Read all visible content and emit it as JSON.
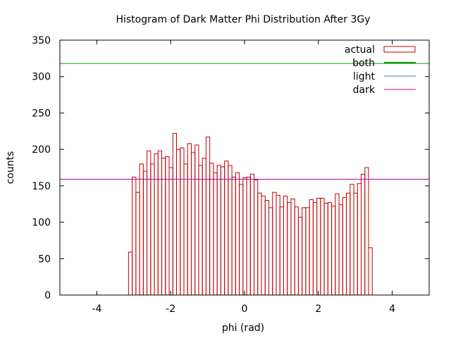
{
  "chart_data": {
    "type": "bar",
    "title": "Histogram of Dark Matter Phi Distribution After 3Gy",
    "xlabel": "phi (rad)",
    "ylabel": "counts",
    "xlim": [
      -5,
      5
    ],
    "ylim": [
      0,
      350
    ],
    "xticks": [
      -4,
      -2,
      0,
      2,
      4
    ],
    "yticks": [
      0,
      50,
      100,
      150,
      200,
      250,
      300,
      350
    ],
    "grid": false,
    "legend_position": "top-right",
    "bin_start": -3.14159,
    "bin_width": 0.1,
    "series": [
      {
        "name": "actual",
        "kind": "histogram",
        "color": "#c00000",
        "values": [
          59,
          162,
          141,
          180,
          170,
          198,
          180,
          194,
          198,
          188,
          190,
          175,
          222,
          200,
          202,
          180,
          208,
          196,
          206,
          178,
          188,
          217,
          181,
          168,
          178,
          176,
          184,
          178,
          162,
          168,
          152,
          161,
          162,
          166,
          158,
          140,
          136,
          130,
          120,
          141,
          137,
          121,
          136,
          127,
          132,
          121,
          107,
          120,
          120,
          131,
          127,
          133,
          133,
          126,
          127,
          122,
          139,
          124,
          134,
          140,
          152,
          140,
          153,
          166,
          175,
          65
        ]
      },
      {
        "name": "both",
        "kind": "hline",
        "y": 318,
        "color": "#00a000"
      },
      {
        "name": "light",
        "kind": "hline",
        "y": null,
        "color": "#2a7ab8"
      },
      {
        "name": "dark",
        "kind": "hline",
        "y": 159,
        "color": "#b000b0"
      }
    ]
  }
}
